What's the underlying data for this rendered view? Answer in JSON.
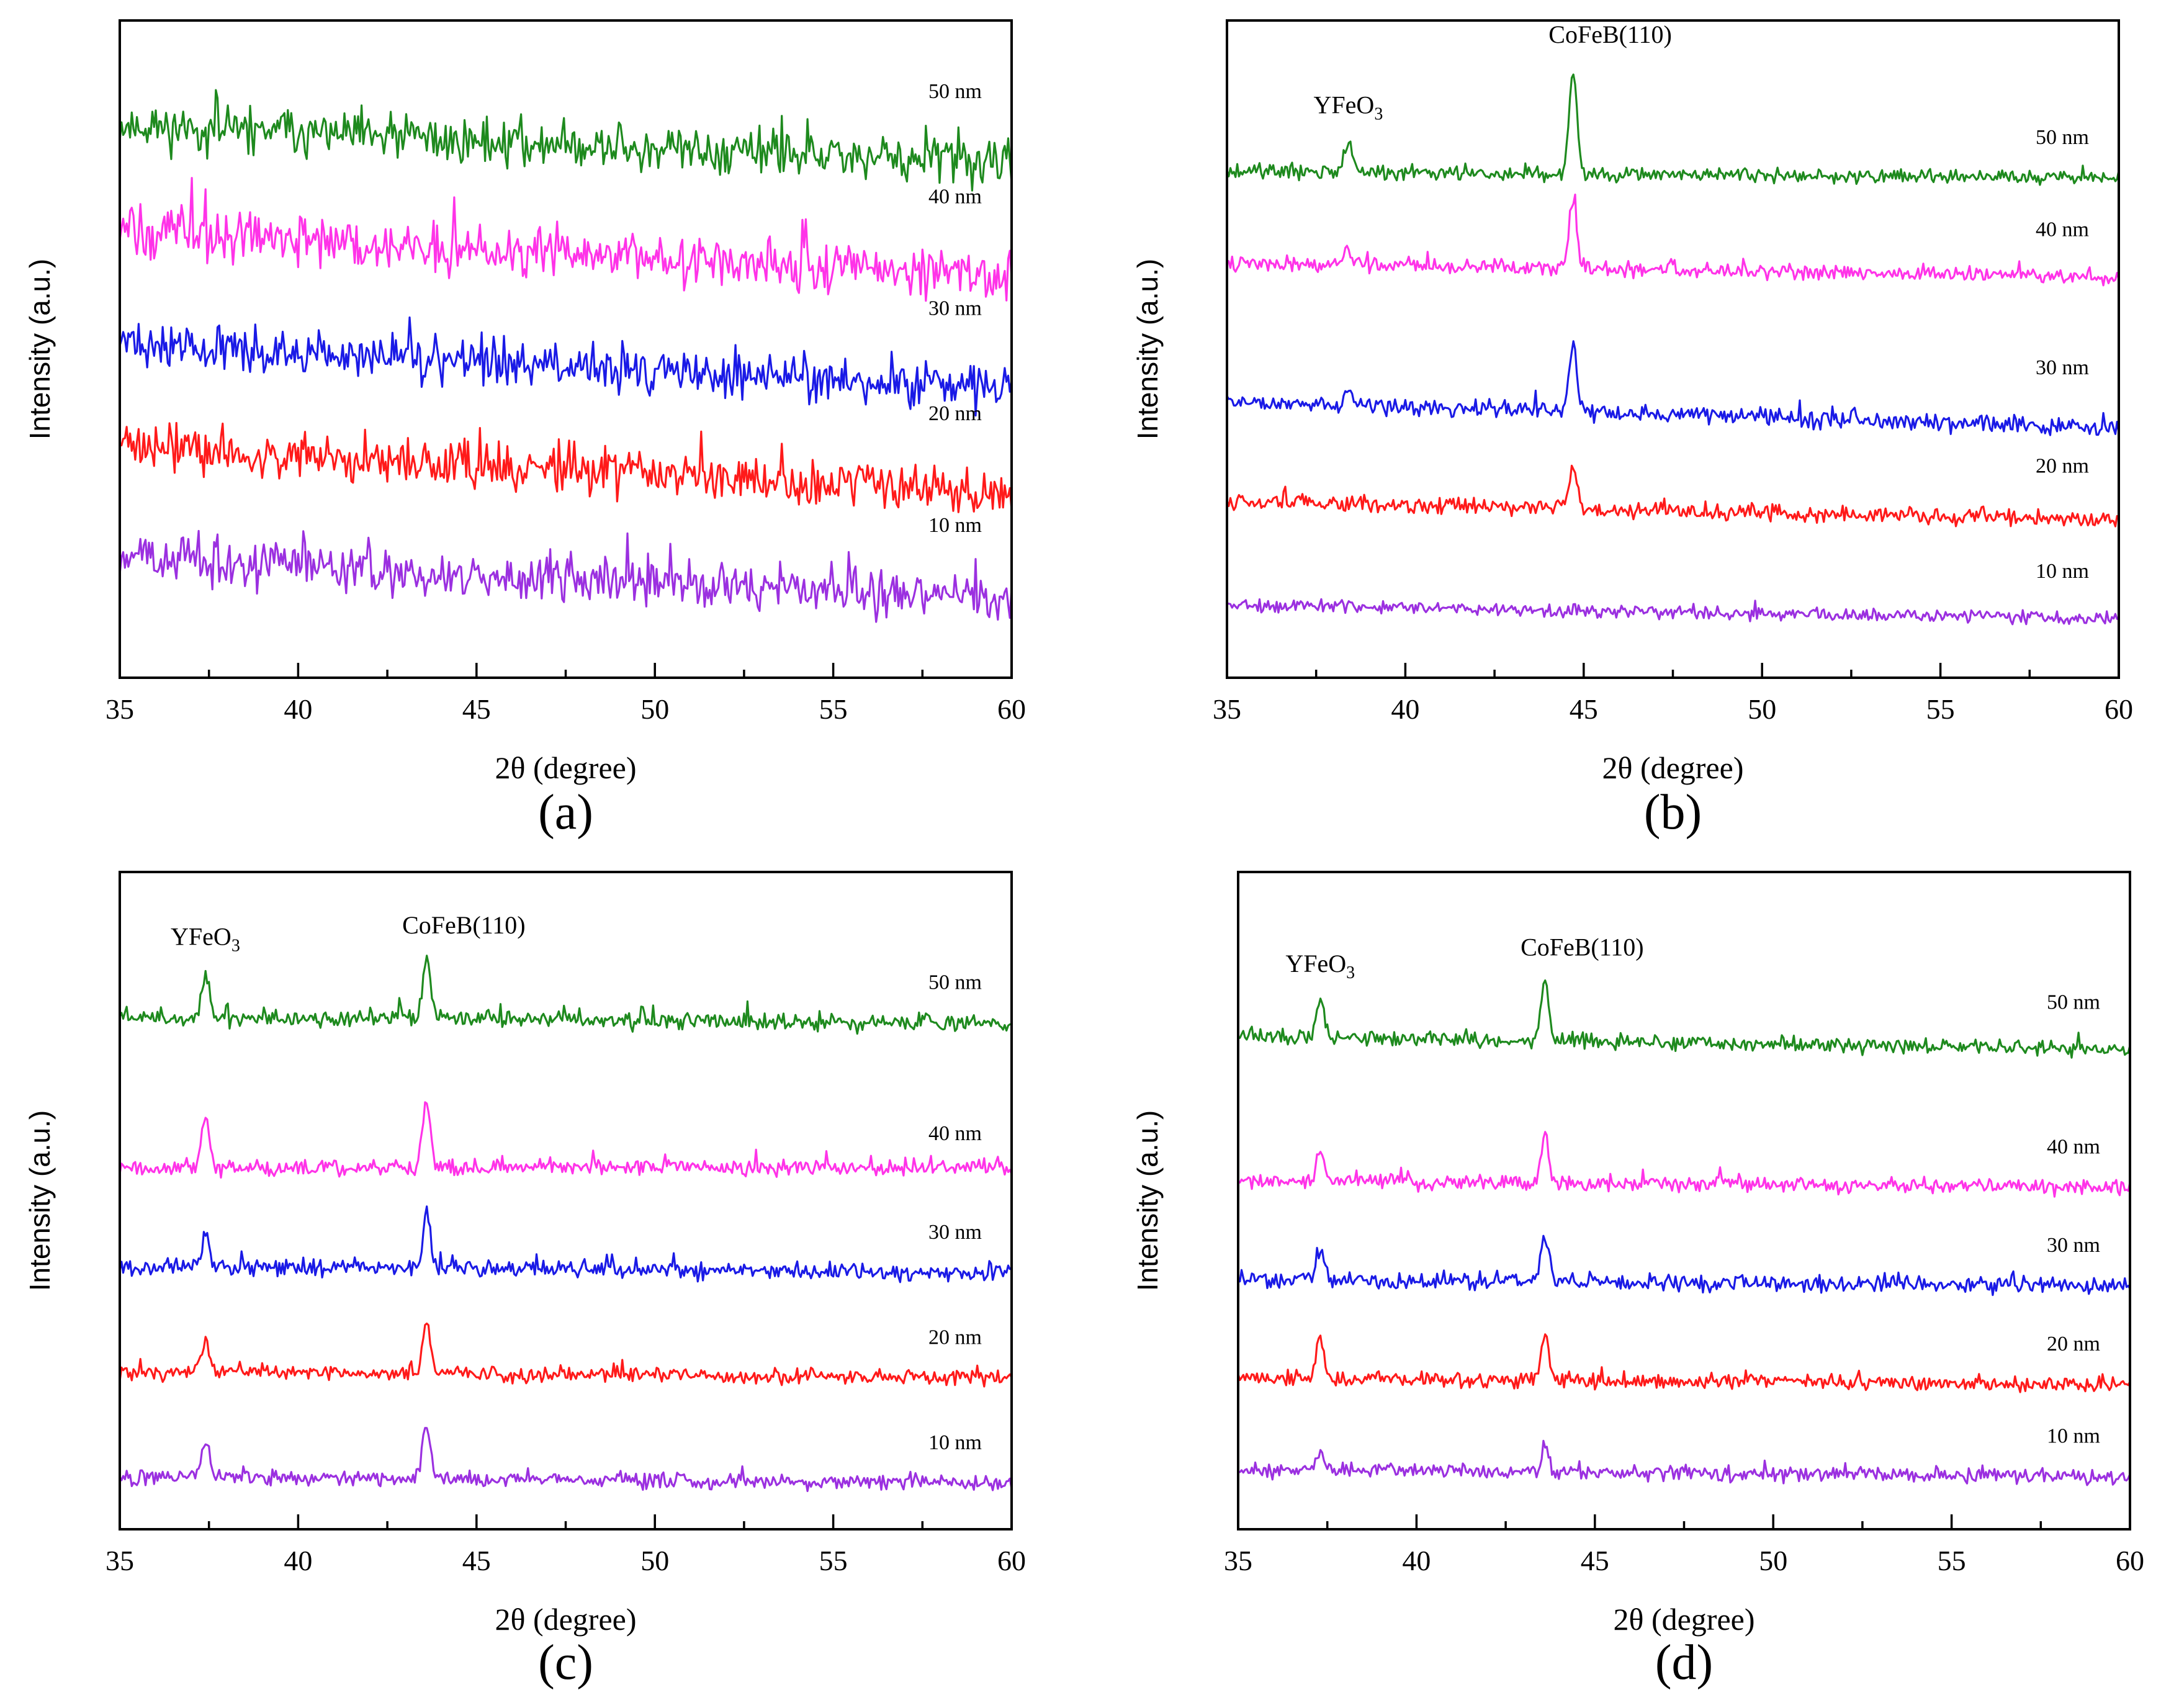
{
  "chart_data": [
    {
      "type": "line",
      "panel": "(a)",
      "xlabel": "2θ (degree)",
      "ylabel": "Intensity (a.u.)",
      "xlim": [
        35,
        60
      ],
      "xticks": [
        35,
        40,
        45,
        50,
        55,
        60
      ],
      "ylim": [
        0,
        100
      ],
      "yticks_shown": false,
      "peak_labels": [],
      "series": [
        {
          "name": "50 nm",
          "color": "#1e8a1e",
          "start": 84,
          "end": 78,
          "noise": 2.2,
          "peaks": []
        },
        {
          "name": "40 nm",
          "color": "#ff33e8",
          "start": 68,
          "end": 61,
          "noise": 2.2,
          "peaks": []
        },
        {
          "name": "30 nm",
          "color": "#1a1ae6",
          "start": 51,
          "end": 44,
          "noise": 2.2,
          "peaks": []
        },
        {
          "name": "20 nm",
          "color": "#ff1a1a",
          "start": 35,
          "end": 28,
          "noise": 2.2,
          "peaks": []
        },
        {
          "name": "10 nm",
          "color": "#9b30e0",
          "start": 18,
          "end": 12,
          "noise": 2.2,
          "peaks": []
        }
      ]
    },
    {
      "type": "line",
      "panel": "(b)",
      "xlabel": "2θ (degree)",
      "ylabel": "Intensity (a.u.)",
      "xlim": [
        35,
        60
      ],
      "xticks": [
        35,
        40,
        45,
        50,
        55,
        60
      ],
      "ylim": [
        0,
        100
      ],
      "yticks_shown": false,
      "peak_labels": [
        {
          "text": "YFeO",
          "sub": "3",
          "x": 38.4
        },
        {
          "text": "CoFeB(110)",
          "sub": "",
          "x": 44.7
        }
      ],
      "series": [
        {
          "name": "50 nm",
          "color": "#1e8a1e",
          "start": 77,
          "end": 76,
          "noise": 0.7,
          "peaks": [
            {
              "x": 38.4,
              "h": 5
            },
            {
              "x": 44.7,
              "h": 16
            }
          ]
        },
        {
          "name": "40 nm",
          "color": "#ff33e8",
          "start": 63,
          "end": 61,
          "noise": 0.7,
          "peaks": [
            {
              "x": 38.4,
              "h": 2.5
            },
            {
              "x": 44.7,
              "h": 10
            }
          ]
        },
        {
          "name": "30 nm",
          "color": "#1a1ae6",
          "start": 42,
          "end": 38,
          "noise": 0.8,
          "peaks": [
            {
              "x": 38.4,
              "h": 2.5
            },
            {
              "x": 44.7,
              "h": 10
            }
          ]
        },
        {
          "name": "20 nm",
          "color": "#ff1a1a",
          "start": 27,
          "end": 24,
          "noise": 0.8,
          "peaks": [
            {
              "x": 44.7,
              "h": 6
            }
          ]
        },
        {
          "name": "10 nm",
          "color": "#9b30e0",
          "start": 11,
          "end": 9,
          "noise": 0.6,
          "peaks": []
        }
      ]
    },
    {
      "type": "line",
      "panel": "(c)",
      "xlabel": "2θ (degree)",
      "ylabel": "Intensity (a.u.)",
      "xlim": [
        35,
        60
      ],
      "xticks": [
        35,
        40,
        45,
        50,
        55,
        60
      ],
      "ylim": [
        0,
        100
      ],
      "yticks_shown": false,
      "peak_labels": [
        {
          "text": "YFeO",
          "sub": "3",
          "x": 37.4
        },
        {
          "text": "CoFeB(110)",
          "sub": "",
          "x": 43.6
        }
      ],
      "series": [
        {
          "name": "50 nm",
          "color": "#1e8a1e",
          "start": 78,
          "end": 77,
          "noise": 0.8,
          "peaks": [
            {
              "x": 37.4,
              "h": 7
            },
            {
              "x": 43.6,
              "h": 9
            }
          ]
        },
        {
          "name": "40 nm",
          "color": "#ff33e8",
          "start": 55,
          "end": 55,
          "noise": 0.7,
          "peaks": [
            {
              "x": 37.4,
              "h": 7
            },
            {
              "x": 43.6,
              "h": 10
            }
          ]
        },
        {
          "name": "30 nm",
          "color": "#1a1ae6",
          "start": 40,
          "end": 39,
          "noise": 0.8,
          "peaks": [
            {
              "x": 37.4,
              "h": 4.5
            },
            {
              "x": 43.6,
              "h": 8
            }
          ]
        },
        {
          "name": "20 nm",
          "color": "#ff1a1a",
          "start": 24,
          "end": 23,
          "noise": 0.7,
          "peaks": [
            {
              "x": 37.4,
              "h": 5
            },
            {
              "x": 43.6,
              "h": 8
            }
          ]
        },
        {
          "name": "10 nm",
          "color": "#9b30e0",
          "start": 8,
          "end": 7,
          "noise": 0.7,
          "peaks": [
            {
              "x": 37.4,
              "h": 5
            },
            {
              "x": 43.6,
              "h": 8
            }
          ]
        }
      ]
    },
    {
      "type": "line",
      "panel": "(d)",
      "xlabel": "2θ (degree)",
      "ylabel": "Intensity (a.u.)",
      "xlim": [
        35,
        60
      ],
      "xticks": [
        35,
        40,
        45,
        50,
        55,
        60
      ],
      "ylim": [
        0,
        100
      ],
      "yticks_shown": false,
      "peak_labels": [
        {
          "text": "YFeO",
          "sub": "3",
          "x": 37.3
        },
        {
          "text": "CoFeB(110)",
          "sub": "",
          "x": 43.6
        }
      ],
      "series": [
        {
          "name": "50 nm",
          "color": "#1e8a1e",
          "start": 75,
          "end": 73,
          "noise": 0.7,
          "peaks": [
            {
              "x": 37.3,
              "h": 6
            },
            {
              "x": 43.6,
              "h": 9
            }
          ]
        },
        {
          "name": "40 nm",
          "color": "#ff33e8",
          "start": 53,
          "end": 52,
          "noise": 0.7,
          "peaks": [
            {
              "x": 37.3,
              "h": 5
            },
            {
              "x": 43.6,
              "h": 7
            }
          ]
        },
        {
          "name": "30 nm",
          "color": "#1a1ae6",
          "start": 38,
          "end": 37,
          "noise": 0.8,
          "peaks": [
            {
              "x": 37.3,
              "h": 5
            },
            {
              "x": 43.6,
              "h": 7
            }
          ]
        },
        {
          "name": "20 nm",
          "color": "#ff1a1a",
          "start": 23,
          "end": 22,
          "noise": 0.7,
          "peaks": [
            {
              "x": 37.3,
              "h": 6
            },
            {
              "x": 43.6,
              "h": 7
            }
          ]
        },
        {
          "name": "10 nm",
          "color": "#9b30e0",
          "start": 9,
          "end": 8,
          "noise": 0.7,
          "peaks": [
            {
              "x": 37.3,
              "h": 3
            },
            {
              "x": 43.6,
              "h": 4
            }
          ]
        }
      ]
    }
  ]
}
